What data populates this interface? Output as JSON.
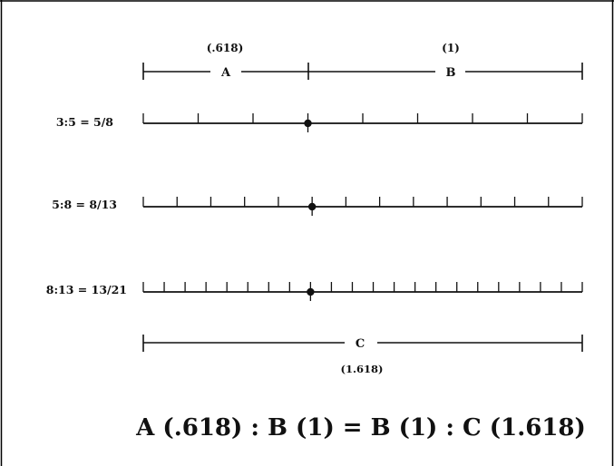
{
  "segments": {
    "a": {
      "letter": "A",
      "value": "(.618)"
    },
    "b": {
      "letter": "B",
      "value": "(1)"
    },
    "c": {
      "letter": "C",
      "value": "(1.618)"
    }
  },
  "ruler_labels": [
    "3:5 = 5/8",
    "5:8 = 8/13",
    "8:13 = 13/21"
  ],
  "ruler_divisions": [
    8,
    13,
    21
  ],
  "ruler_split_index": [
    3,
    5,
    8
  ],
  "equation": "A (.618) : B (1) = B (1) : C (1.618)",
  "colors": {
    "ink": "#111111",
    "frame": "#000000",
    "background": "#ffffff"
  }
}
